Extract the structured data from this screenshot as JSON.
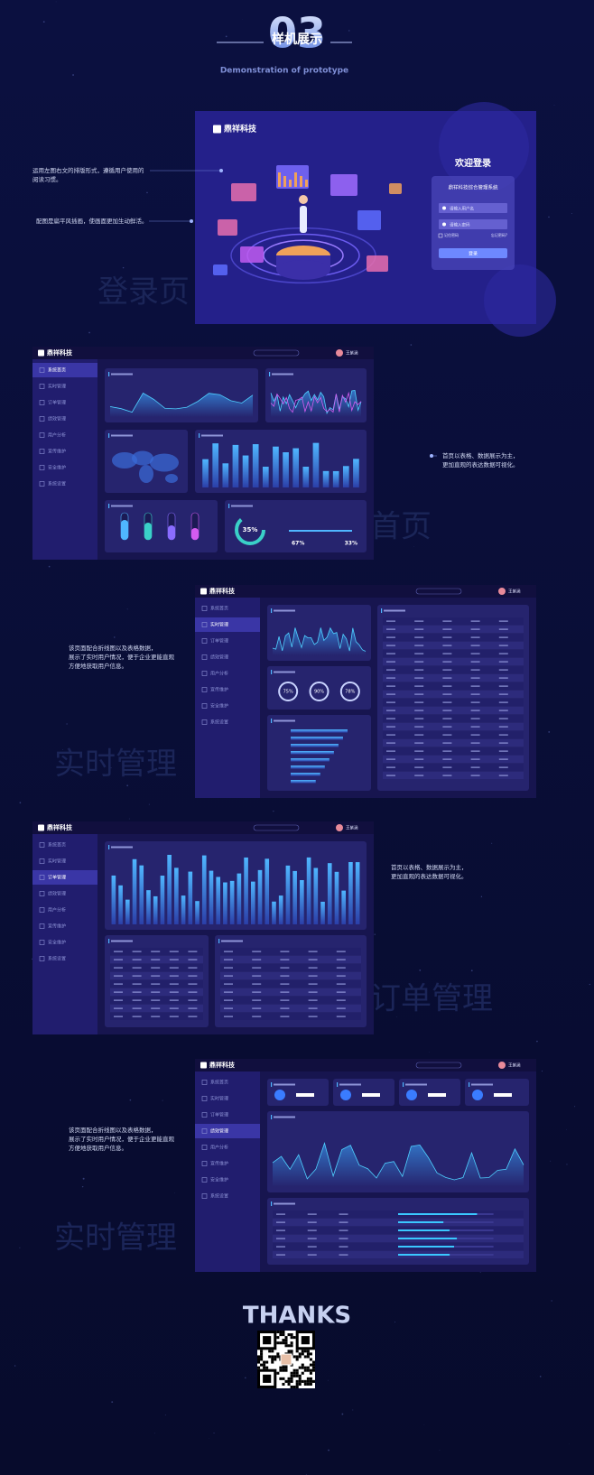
{
  "header": {
    "number": "03",
    "title": "样机展示",
    "subtitle": "Demonstration of prototype"
  },
  "brand": "鼎祥科技",
  "user": "王紫涵",
  "menu": [
    "系统首页",
    "实时管理",
    "订单管理",
    "绩效管理",
    "用户分析",
    "宣传维护",
    "安全维护",
    "系统设置"
  ],
  "login": {
    "title": "欢迎登录",
    "system": "鼎祥科技综合管理系统",
    "username": "请输入用户名",
    "password": "请输入密码",
    "remember": "记住密码",
    "forgot": "忘记密码?",
    "button": "登录"
  },
  "sections": [
    {
      "watermark": "登录页",
      "notes": [
        [
          "运用左图右文的排版形式，遵循用户使用的",
          "阅读习惯。"
        ],
        [
          "配图是扁平风插画，使画面更加生动鲜活。"
        ]
      ]
    },
    {
      "watermark": "首页",
      "notes": [
        [
          "首页以表格、数据展示为主，",
          "更加直观的表达数据可视化。"
        ]
      ],
      "labels": [
        "35%",
        "67%",
        "33%"
      ]
    },
    {
      "watermark": "实时管理",
      "notes": [
        [
          "该页面配合折线图以及表格数据，",
          "展示了实时用户情况，便于企业更能直观",
          "方便地获取用户信息。"
        ]
      ],
      "labels": [
        "75%",
        "90%",
        "78%"
      ]
    },
    {
      "watermark": "订单管理",
      "notes": [
        [
          "首页以表格、数据展示为主，",
          "更加直观的表达数据可视化。"
        ]
      ]
    },
    {
      "watermark": "实时管理",
      "notes": [
        [
          "该页面配合折线图以及表格数据，",
          "展示了实时用户情况，便于企业更能直观",
          "方便地获取用户信息。"
        ]
      ]
    }
  ],
  "thanks": "THANKS"
}
